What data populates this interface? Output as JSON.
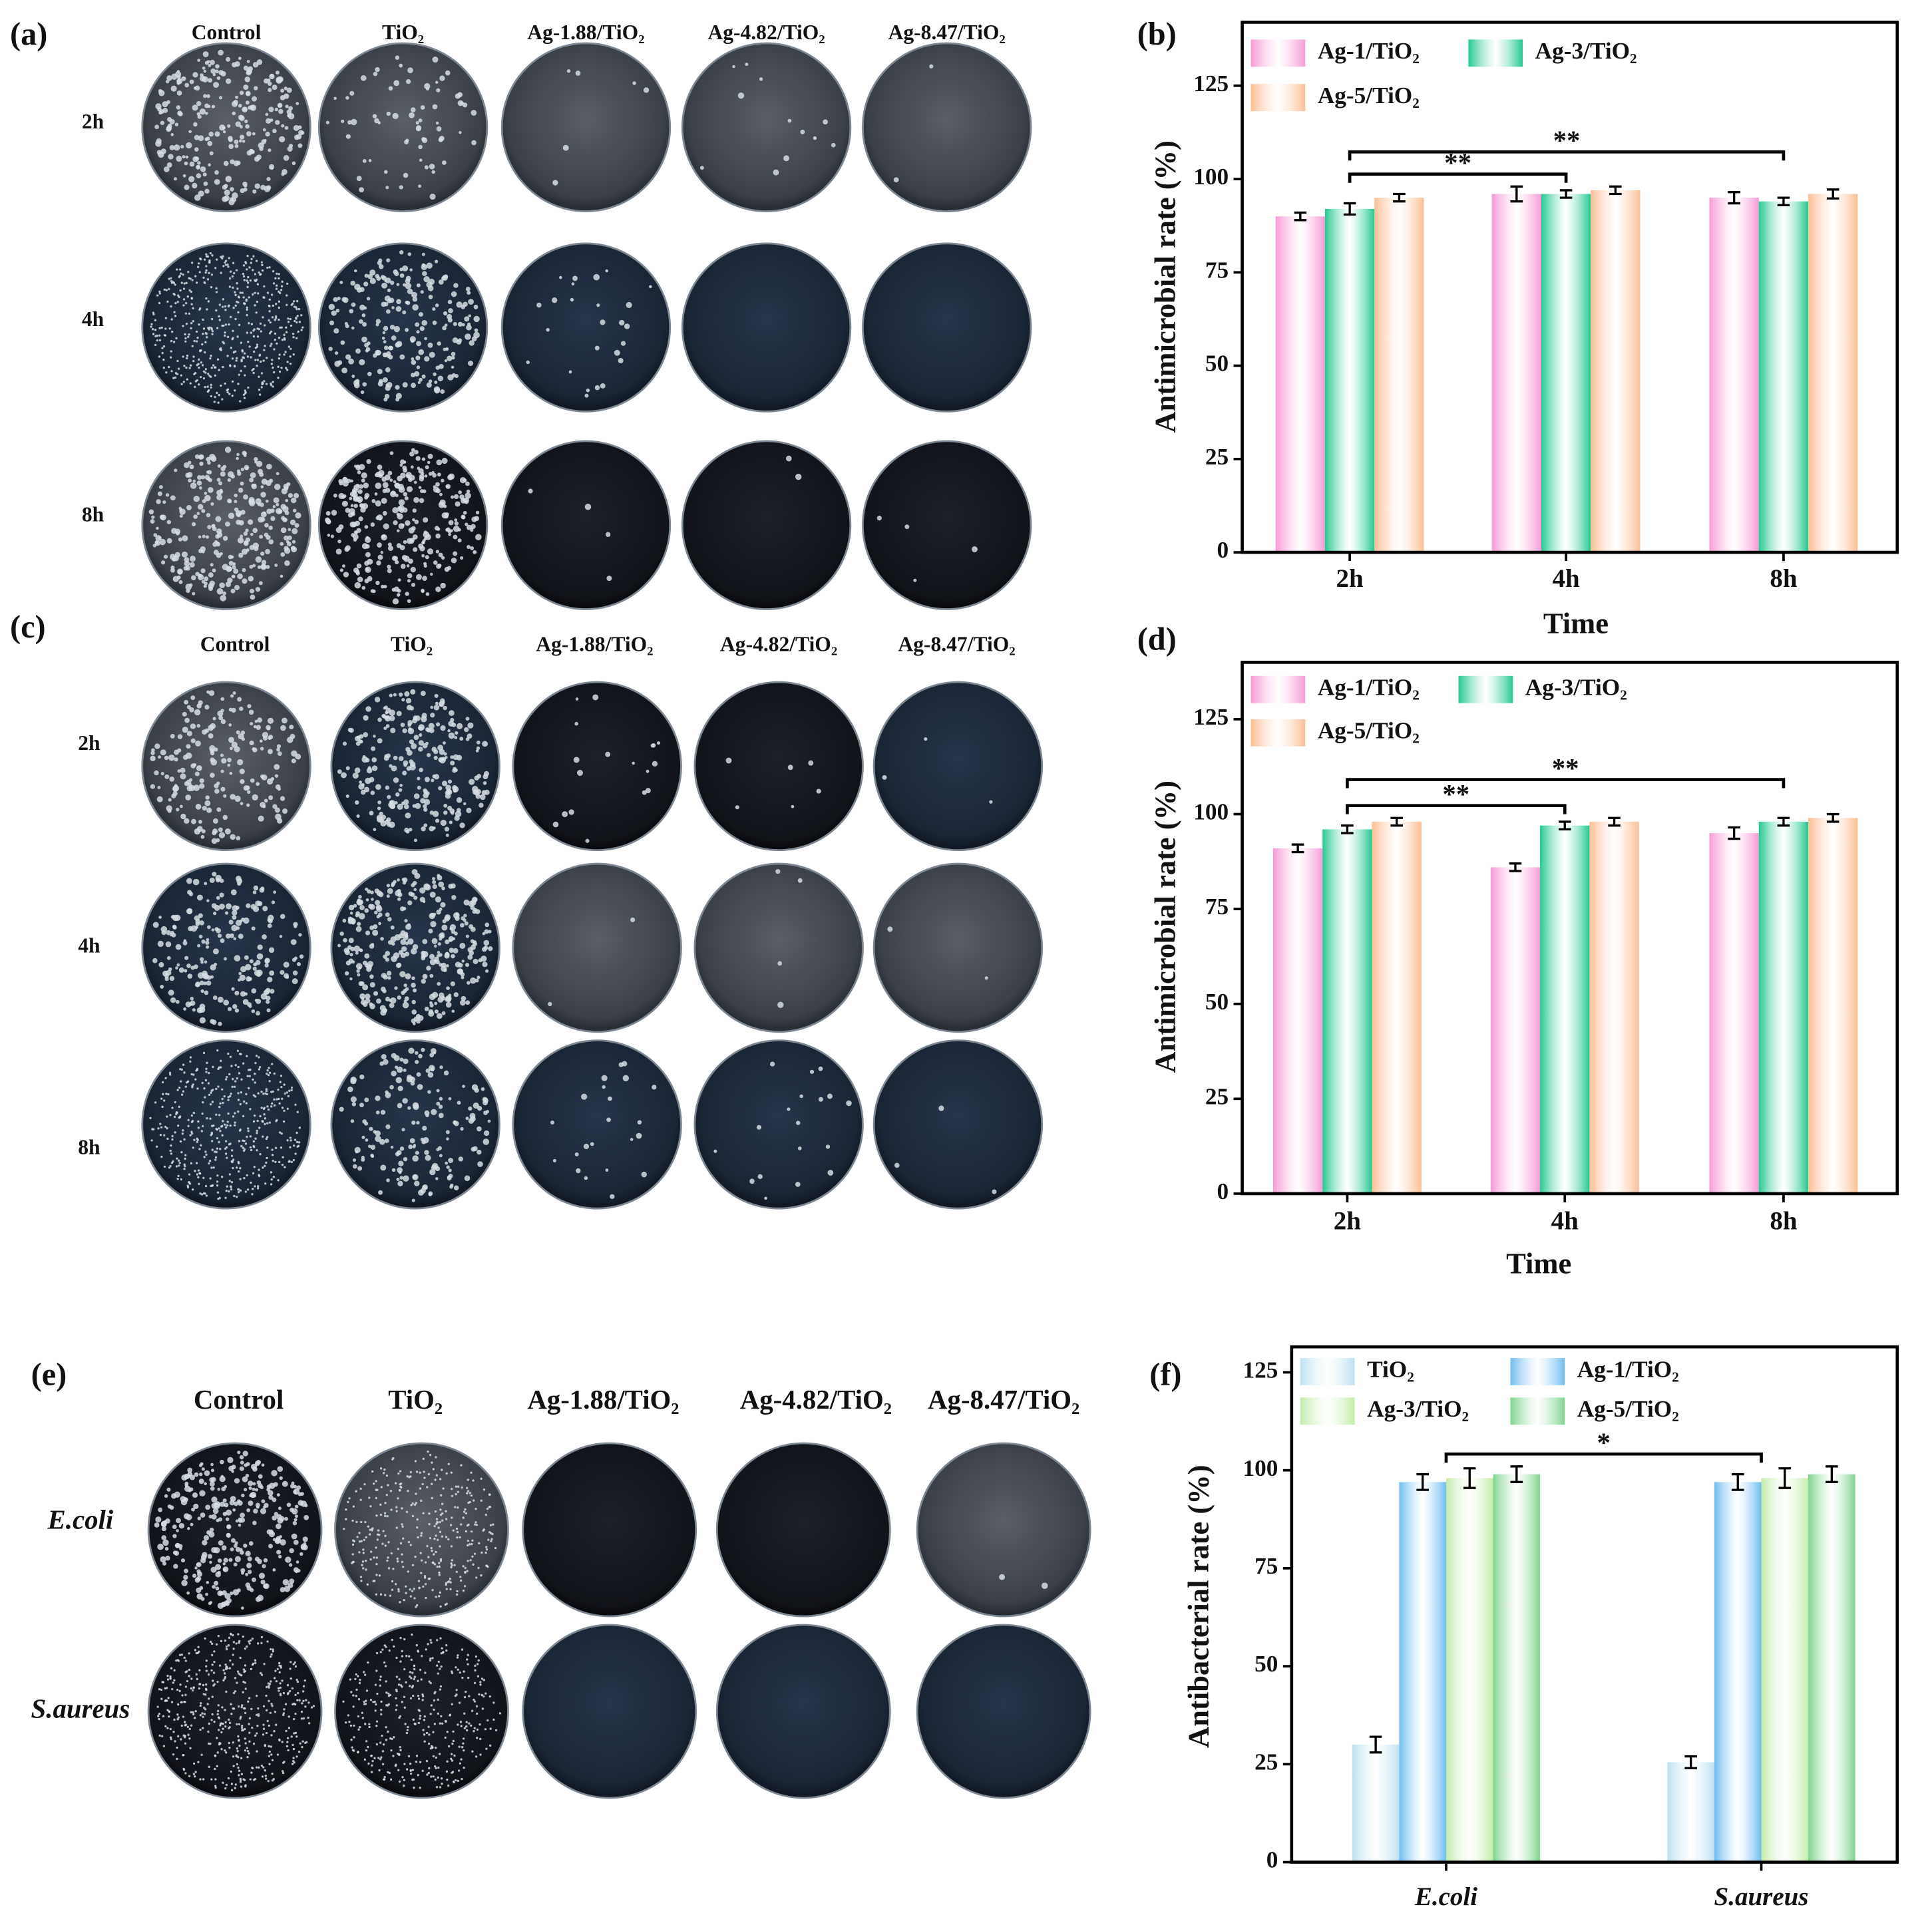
{
  "panels": [
    {
      "label": "(a)",
      "columns": [
        "Control",
        "TiO₂",
        "Ag-1.88/TiO₂",
        "Ag-4.82/TiO₂",
        "Ag-8.47/TiO₂"
      ],
      "rows": [
        "2h",
        "4h",
        "8h"
      ]
    },
    {
      "label": "(c)",
      "columns": [
        "Control",
        "TiO₂",
        "Ag-1.88/TiO₂",
        "Ag-4.82/TiO₂",
        "Ag-8.47/TiO₂"
      ],
      "rows": [
        "2h",
        "4h",
        "8h"
      ]
    },
    {
      "label": "(e)",
      "columns": [
        "Control",
        "TiO₂",
        "Ag-1.88/TiO₂",
        "Ag-4.82/TiO₂",
        "Ag-8.47/TiO₂"
      ],
      "rows": [
        "E.coli",
        "S.aureus"
      ]
    }
  ],
  "chart_data": [
    {
      "type": "bar",
      "label": "(b)",
      "ylabel": "Antimicrobial rate (%)",
      "xlabel": "Time",
      "categories": [
        "2h",
        "4h",
        "8h"
      ],
      "series": [
        {
          "name": "Ag-1/TiO₂",
          "color": "#f59ad6",
          "values": [
            90,
            96,
            95
          ],
          "errors": [
            1,
            2,
            1.5
          ]
        },
        {
          "name": "Ag-3/TiO₂",
          "color": "#22c98f",
          "values": [
            92,
            96,
            94
          ],
          "errors": [
            1.5,
            1,
            1
          ]
        },
        {
          "name": "Ag-5/TiO₂",
          "color": "#fbbf95",
          "values": [
            95,
            97,
            96
          ],
          "errors": [
            1,
            1,
            1.2
          ]
        }
      ],
      "ylim": [
        0,
        142
      ],
      "yticks": [
        0,
        25,
        50,
        75,
        100,
        125
      ],
      "significance": [
        {
          "label": "**",
          "from": "2h",
          "to": "4h"
        },
        {
          "label": "**",
          "from": "2h",
          "to": "8h"
        }
      ]
    },
    {
      "type": "bar",
      "label": "(d)",
      "ylabel": "Antimicrobial rate (%)",
      "xlabel": "Time",
      "categories": [
        "2h",
        "4h",
        "8h"
      ],
      "series": [
        {
          "name": "Ag-1/TiO₂",
          "color": "#f59ad6",
          "values": [
            91,
            86,
            95
          ],
          "errors": [
            1,
            1,
            1.5
          ]
        },
        {
          "name": "Ag-3/TiO₂",
          "color": "#22c98f",
          "values": [
            96,
            97,
            98
          ],
          "errors": [
            1,
            1,
            1
          ]
        },
        {
          "name": "Ag-5/TiO₂",
          "color": "#fbbf95",
          "values": [
            98,
            98,
            99
          ],
          "errors": [
            1,
            1,
            1
          ]
        }
      ],
      "ylim": [
        0,
        140
      ],
      "yticks": [
        0,
        25,
        50,
        75,
        100,
        125
      ],
      "significance": [
        {
          "label": "**",
          "from": "2h",
          "to": "4h"
        },
        {
          "label": "**",
          "from": "2h",
          "to": "8h"
        }
      ]
    },
    {
      "type": "bar",
      "label": "(f)",
      "ylabel": "Antibacterial rate (%)",
      "categories": [
        "E.coli",
        "S.aureus"
      ],
      "series": [
        {
          "name": "TiO₂",
          "color": "#bfe0f0",
          "values": [
            30,
            25.5
          ],
          "errors": [
            2,
            1.5
          ]
        },
        {
          "name": "Ag-1/TiO₂",
          "color": "#6fbdef",
          "values": [
            97,
            97
          ],
          "errors": [
            2,
            2
          ]
        },
        {
          "name": "Ag-3/TiO₂",
          "color": "#c4ecaa",
          "values": [
            98,
            98
          ],
          "errors": [
            2.5,
            2.5
          ]
        },
        {
          "name": "Ag-5/TiO₂",
          "color": "#7fd48f",
          "values": [
            99,
            99
          ],
          "errors": [
            2,
            2
          ]
        }
      ],
      "ylim": [
        0,
        131.5
      ],
      "yticks": [
        0,
        25,
        50,
        75,
        100,
        125
      ],
      "significance": [
        {
          "label": "*",
          "from": "E.coli",
          "to": "S.aureus"
        }
      ]
    }
  ]
}
